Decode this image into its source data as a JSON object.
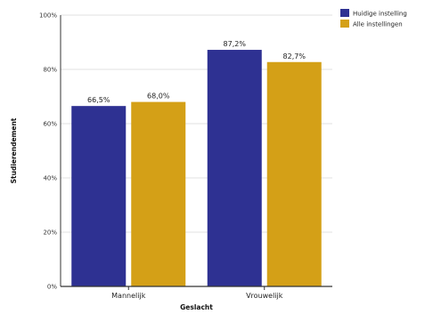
{
  "chart_data": {
    "type": "bar",
    "title": "",
    "xlabel": "Geslacht",
    "ylabel": "Studierendement",
    "categories": [
      "Mannelijk",
      "Vrouwelijk"
    ],
    "series": [
      {
        "name": "Huidige instelling",
        "values": [
          66.5,
          87.2
        ],
        "labels": [
          "66,5%",
          "87,2%"
        ],
        "color": "#2e3192"
      },
      {
        "name": "Alle instellingen",
        "values": [
          68.0,
          82.7
        ],
        "labels": [
          "68,0%",
          "82,7%"
        ],
        "color": "#d4a017"
      }
    ],
    "ylim": [
      0,
      100
    ],
    "yticks": [
      0,
      20,
      40,
      60,
      80,
      100
    ],
    "ytick_labels": [
      "0%",
      "20%",
      "40%",
      "60%",
      "80%",
      "100%"
    ],
    "grid": true,
    "legend": "top-right"
  }
}
